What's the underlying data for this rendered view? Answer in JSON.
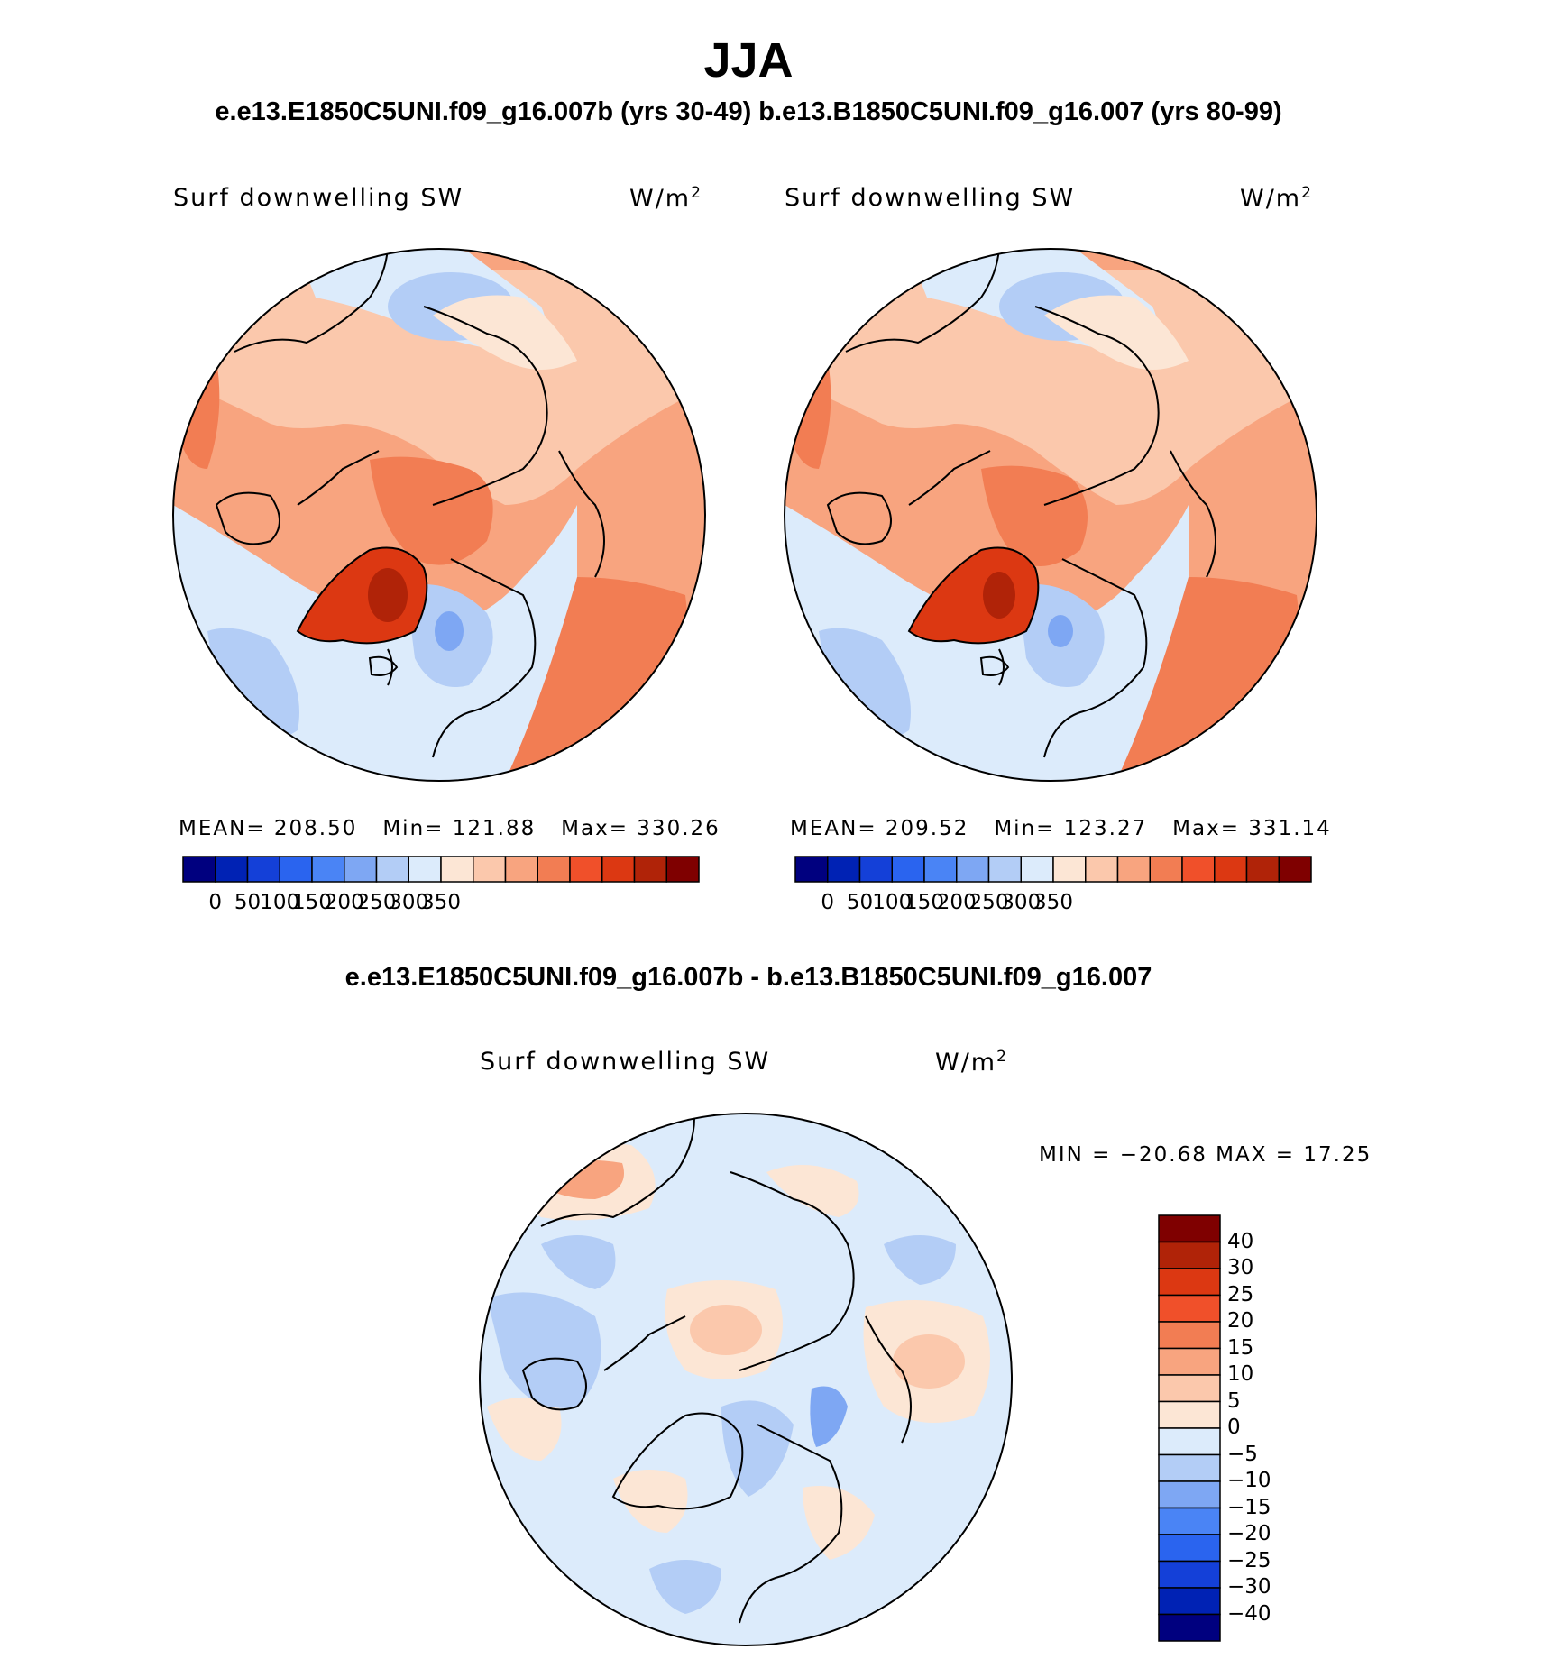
{
  "figure": {
    "title": "JJA",
    "subtitle_top": "e.e13.E1850C5UNI.f09_g16.007b (yrs 30-49)  b.e13.B1850C5UNI.f09_g16.007 (yrs 80-99)",
    "subtitle_diff": "e.e13.E1850C5UNI.f09_g16.007b - b.e13.B1850C5UNI.f09_g16.007"
  },
  "panels": [
    {
      "variable": "Surf downwelling SW",
      "units_base": "W/m",
      "units_exp": "2",
      "mean_label": "MEAN=",
      "mean_value": "208.50",
      "min_label": "Min=",
      "min_value": "121.88",
      "max_label": "Max=",
      "max_value": "330.26"
    },
    {
      "variable": "Surf downwelling SW",
      "units_base": "W/m",
      "units_exp": "2",
      "mean_label": "MEAN=",
      "mean_value": "209.52",
      "min_label": "Min=",
      "min_value": "123.27",
      "max_label": "Max=",
      "max_value": "331.14"
    }
  ],
  "diff_panel": {
    "variable": "Surf downwelling SW",
    "units_base": "W/m",
    "units_exp": "2",
    "minmax_text": "MIN = −20.68 MAX =   17.25"
  },
  "colorbar_abs": {
    "ticks": [
      "0",
      "50",
      "100",
      "150",
      "200",
      "250",
      "300",
      "350"
    ],
    "colors": [
      "#00007f",
      "#0022b4",
      "#1440d8",
      "#2a64ef",
      "#4a84f5",
      "#7ea7f3",
      "#b3cdf6",
      "#dcebfb",
      "#fce6d5",
      "#fbc8ac",
      "#f8a47f",
      "#f27d53",
      "#f0502a",
      "#dc3812",
      "#b02308",
      "#7f0000"
    ]
  },
  "colorbar_diff": {
    "ticks": [
      "40",
      "30",
      "25",
      "20",
      "15",
      "10",
      "5",
      "0",
      "−5",
      "−10",
      "−15",
      "−20",
      "−25",
      "−30",
      "−40"
    ],
    "colors": [
      "#7f0000",
      "#b02308",
      "#dc3812",
      "#f0502a",
      "#f27d53",
      "#f8a47f",
      "#fbc8ac",
      "#fce6d5",
      "#dcebfb",
      "#b3cdf6",
      "#7ea7f3",
      "#4a84f5",
      "#2a64ef",
      "#1440d8",
      "#0022b4",
      "#00007f"
    ]
  }
}
